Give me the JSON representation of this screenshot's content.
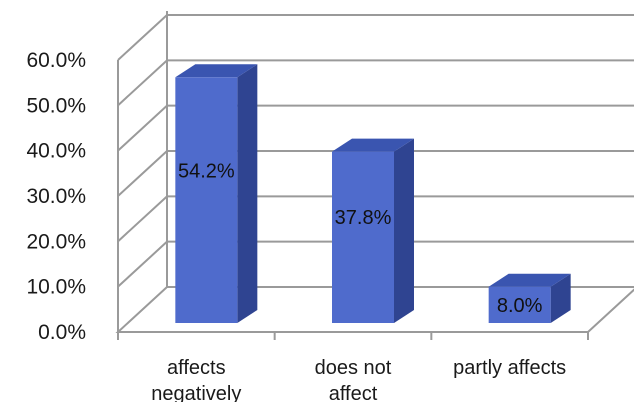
{
  "chart_data": {
    "type": "bar",
    "style": "3d-column",
    "categories": [
      "affects negatively",
      "does not affect",
      "partly affects"
    ],
    "category_lines": [
      [
        "affects",
        "negatively"
      ],
      [
        "does not",
        "affect"
      ],
      [
        "partly affects"
      ]
    ],
    "values": [
      54.2,
      37.8,
      8.0
    ],
    "data_labels": [
      "54.2%",
      "37.8%",
      "8.0%"
    ],
    "y_ticks": [
      "0.0%",
      "10.0%",
      "20.0%",
      "30.0%",
      "40.0%",
      "50.0%",
      "60.0%"
    ],
    "ylim": [
      0,
      60
    ],
    "title": "",
    "xlabel": "",
    "ylabel": "",
    "grid": true,
    "legend": "none",
    "colors": {
      "bar_front": "#4f6bcc",
      "bar_side": "#2f4491",
      "bar_top": "#3a55b0",
      "gridline": "#9a9a9a",
      "wall": "#ffffff"
    }
  }
}
